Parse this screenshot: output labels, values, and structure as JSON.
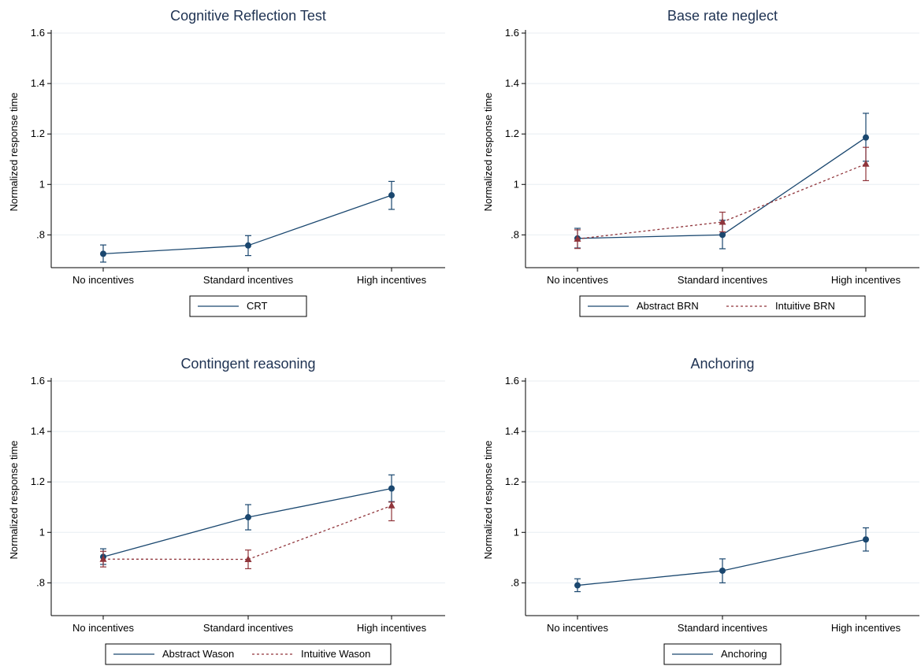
{
  "chart_data": [
    {
      "type": "line",
      "title": "Cognitive Reflection Test",
      "ylabel": "Normalized response time",
      "xlabel": "",
      "categories": [
        "No incentives",
        "Standard incentives",
        "High incentives"
      ],
      "yticks": [
        ".8",
        "1",
        "1.2",
        "1.4",
        "1.6"
      ],
      "ylim": [
        0.67,
        1.65
      ],
      "grid": true,
      "legend": "bottom",
      "series": [
        {
          "name": "CRT",
          "values": [
            0.725,
            0.758,
            0.957
          ],
          "ci_low": [
            0.692,
            0.718,
            0.901
          ],
          "ci_high": [
            0.76,
            0.797,
            1.012
          ],
          "color": "#1a476f",
          "marker": "circle",
          "dash": "solid"
        }
      ]
    },
    {
      "type": "line",
      "title": "Base rate neglect",
      "ylabel": "Normalized response time",
      "xlabel": "",
      "categories": [
        "No incentives",
        "Standard incentives",
        "High incentives"
      ],
      "yticks": [
        ".8",
        "1",
        "1.2",
        "1.4",
        "1.6"
      ],
      "ylim": [
        0.67,
        1.65
      ],
      "grid": true,
      "legend": "bottom",
      "series": [
        {
          "name": "Abstract BRN",
          "values": [
            0.786,
            0.8,
            1.186
          ],
          "ci_low": [
            0.748,
            0.745,
            1.092
          ],
          "ci_high": [
            0.826,
            0.858,
            1.282
          ],
          "color": "#1a476f",
          "marker": "circle",
          "dash": "solid"
        },
        {
          "name": "Intuitive BRN",
          "values": [
            0.784,
            0.851,
            1.081
          ],
          "ci_low": [
            0.746,
            0.812,
            1.015
          ],
          "ci_high": [
            0.82,
            0.89,
            1.147
          ],
          "color": "#90353b",
          "marker": "triangle",
          "dash": "dashed"
        }
      ]
    },
    {
      "type": "line",
      "title": "Contingent reasoning",
      "ylabel": "Normalized response time",
      "xlabel": "",
      "categories": [
        "No incentives",
        "Standard incentives",
        "High incentives"
      ],
      "yticks": [
        ".8",
        "1",
        "1.2",
        "1.4",
        "1.6"
      ],
      "ylim": [
        0.67,
        1.65
      ],
      "grid": true,
      "legend": "bottom",
      "series": [
        {
          "name": "Abstract Wason",
          "values": [
            0.903,
            1.06,
            1.174
          ],
          "ci_low": [
            0.873,
            1.01,
            1.122
          ],
          "ci_high": [
            0.935,
            1.11,
            1.228
          ],
          "color": "#1a476f",
          "marker": "circle",
          "dash": "solid"
        },
        {
          "name": "Intuitive Wason",
          "values": [
            0.894,
            0.893,
            1.106
          ],
          "ci_low": [
            0.863,
            0.856,
            1.046
          ],
          "ci_high": [
            0.925,
            0.93,
            1.12
          ],
          "color": "#90353b",
          "marker": "triangle",
          "dash": "dashed"
        }
      ]
    },
    {
      "type": "line",
      "title": "Anchoring",
      "ylabel": "Normalized response time",
      "xlabel": "",
      "categories": [
        "No incentives",
        "Standard incentives",
        "High incentives"
      ],
      "yticks": [
        ".8",
        "1",
        "1.2",
        "1.4",
        "1.6"
      ],
      "ylim": [
        0.67,
        1.65
      ],
      "grid": true,
      "legend": "bottom",
      "series": [
        {
          "name": "Anchoring",
          "values": [
            0.79,
            0.848,
            0.972
          ],
          "ci_low": [
            0.765,
            0.8,
            0.926
          ],
          "ci_high": [
            0.816,
            0.895,
            1.018
          ],
          "color": "#1a476f",
          "marker": "circle",
          "dash": "solid"
        }
      ]
    }
  ]
}
